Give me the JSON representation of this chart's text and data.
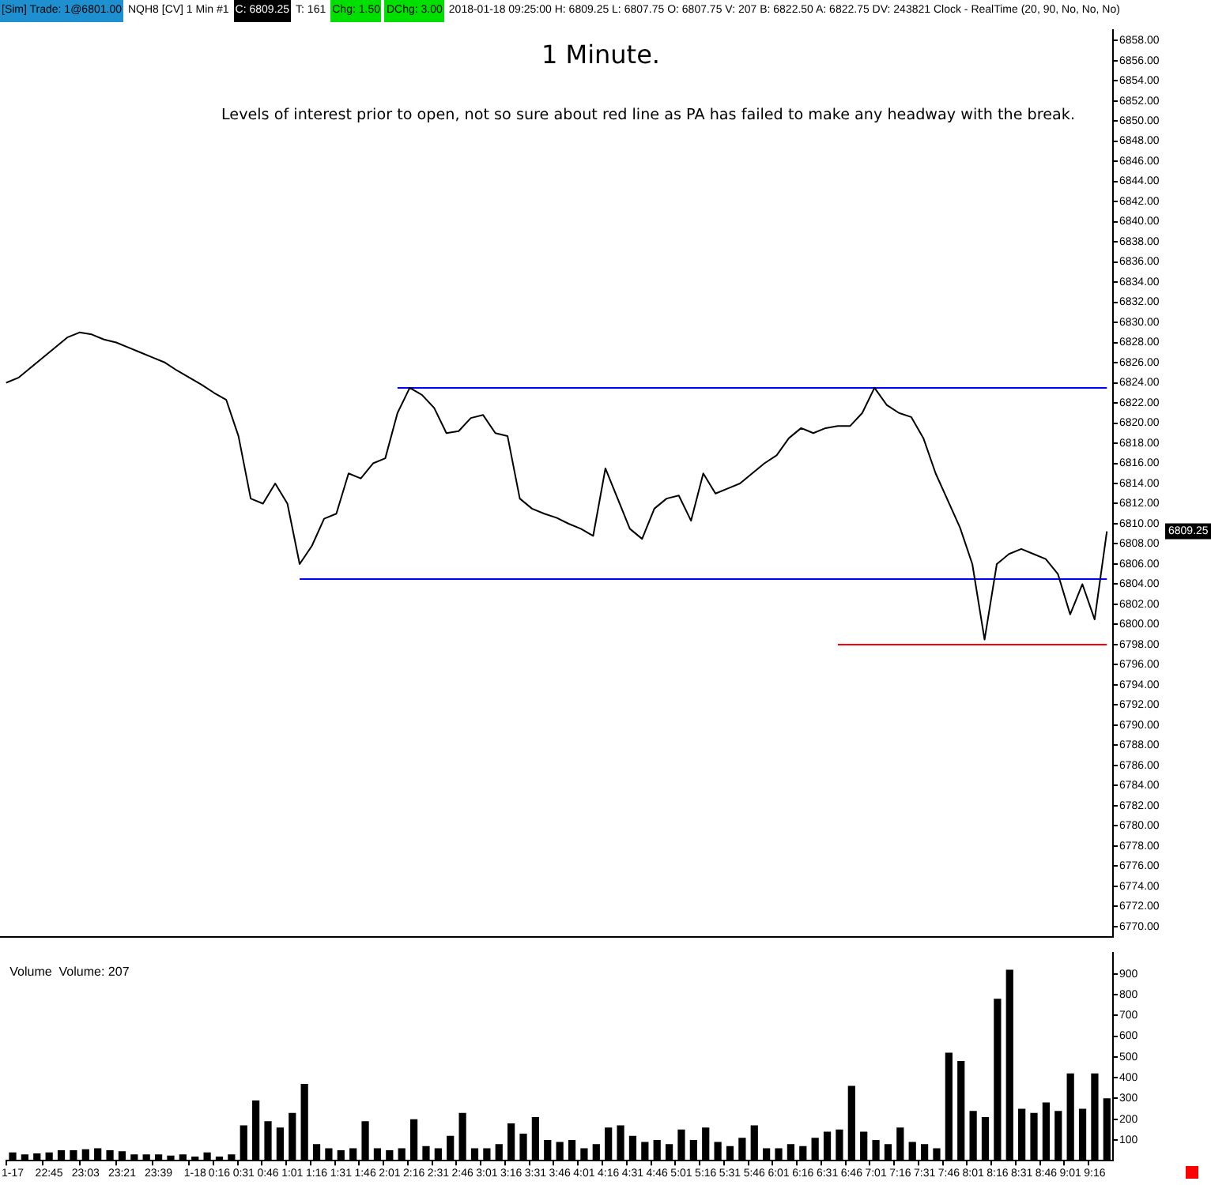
{
  "chart_data": [
    {
      "type": "line",
      "title": "1 Minute.",
      "subtitle": "Levels of interest prior to open, not so sure about red line as PA has failed to make any headway with the break.",
      "annotations": [
        "[Sim]  Trade: 1@6801.00",
        "NQH8 [CV]  1 Min  #1",
        "C: 6809.25",
        "T: 161",
        "Chg: 1.50",
        "DChg: 3.00",
        "2018-01-18 09:25:00 H: 6809.25 L: 6807.75 O: 6807.75 V: 207 B: 6822.50 A: 6822.75 DV: 243821 Clock - RealTime   (20, 90, No, No, No)",
        "6809.25"
      ],
      "series": [
        {
          "color": "#000000",
          "values": [
            6824,
            6824.5,
            6825.5,
            6826.5,
            6827.5,
            6828.5,
            6829,
            6828.8,
            6828.3,
            6828,
            6827.5,
            6827,
            6826.5,
            6826,
            6825.2,
            6824.5,
            6823.8,
            6823,
            6822.3,
            6818.7,
            6812.5,
            6812,
            6814,
            6812,
            6806,
            6807.8,
            6810.5,
            6811,
            6815,
            6814.5,
            6816,
            6816.5,
            6821,
            6823.5,
            6822.8,
            6821.5,
            6819,
            6819.2,
            6820.5,
            6820.8,
            6819,
            6818.7,
            6812.5,
            6811.5,
            6811,
            6810.6,
            6810,
            6809.5,
            6808.8,
            6815.5,
            6812.5,
            6809.5,
            6808.5,
            6811.5,
            6812.5,
            6812.8,
            6810.3,
            6815,
            6813,
            6813.5,
            6814,
            6815,
            6816,
            6816.8,
            6818.5,
            6819.5,
            6819,
            6819.5,
            6819.7,
            6819.7,
            6821,
            6823.5,
            6821.8,
            6821,
            6820.6,
            6818.5,
            6815,
            6812.3,
            6809.6,
            6806,
            6798.5,
            6806,
            6807,
            6807.5,
            6807,
            6806.5,
            6805,
            6801,
            6804,
            6800.5,
            6809.25
          ]
        },
        {
          "color": "#0000ff",
          "values": [
            null,
            null,
            null,
            null,
            null,
            null,
            null,
            null,
            null,
            null,
            null,
            null,
            null,
            null,
            null,
            null,
            null,
            null,
            null,
            null,
            null,
            null,
            null,
            null,
            null,
            null,
            null,
            null,
            null,
            null,
            null,
            null,
            6823.5,
            6823.5,
            6823.5,
            6823.5,
            6823.5,
            6823.5,
            6823.5,
            6823.5,
            6823.5,
            6823.5,
            6823.5,
            6823.5,
            6823.5,
            6823.5,
            6823.5,
            6823.5,
            6823.5,
            6823.5,
            6823.5,
            6823.5,
            6823.5,
            6823.5,
            6823.5,
            6823.5,
            6823.5,
            6823.5,
            6823.5,
            6823.5,
            6823.5,
            6823.5,
            6823.5,
            6823.5,
            6823.5,
            6823.5,
            6823.5,
            6823.5,
            6823.5,
            6823.5,
            6823.5,
            6823.5,
            6823.5,
            6823.5,
            6823.5,
            6823.5,
            6823.5,
            6823.5,
            6823.5,
            6823.5,
            6823.5,
            6823.5,
            6823.5,
            6823.5,
            6823.5,
            6823.5,
            6823.5,
            6823.5,
            6823.5,
            6823.5,
            6823.5
          ]
        },
        {
          "color": "#0000ff",
          "values": [
            null,
            null,
            null,
            null,
            null,
            null,
            null,
            null,
            null,
            null,
            null,
            null,
            null,
            null,
            null,
            null,
            null,
            null,
            null,
            null,
            null,
            null,
            null,
            null,
            6804.5,
            6804.5,
            6804.5,
            6804.5,
            6804.5,
            6804.5,
            6804.5,
            6804.5,
            6804.5,
            6804.5,
            6804.5,
            6804.5,
            6804.5,
            6804.5,
            6804.5,
            6804.5,
            6804.5,
            6804.5,
            6804.5,
            6804.5,
            6804.5,
            6804.5,
            6804.5,
            6804.5,
            6804.5,
            6804.5,
            6804.5,
            6804.5,
            6804.5,
            6804.5,
            6804.5,
            6804.5,
            6804.5,
            6804.5,
            6804.5,
            6804.5,
            6804.5,
            6804.5,
            6804.5,
            6804.5,
            6804.5,
            6804.5,
            6804.5,
            6804.5,
            6804.5,
            6804.5,
            6804.5,
            6804.5,
            6804.5,
            6804.5,
            6804.5,
            6804.5,
            6804.5,
            6804.5,
            6804.5,
            6804.5,
            6804.5,
            6804.5,
            6804.5,
            6804.5,
            6804.5,
            6804.5,
            6804.5,
            6804.5,
            6804.5,
            6804.5,
            6804.5
          ]
        },
        {
          "color": "#ff0000",
          "values": [
            null,
            null,
            null,
            null,
            null,
            null,
            null,
            null,
            null,
            null,
            null,
            null,
            null,
            null,
            null,
            null,
            null,
            null,
            null,
            null,
            null,
            null,
            null,
            null,
            null,
            null,
            null,
            null,
            null,
            null,
            null,
            null,
            null,
            null,
            null,
            null,
            null,
            null,
            null,
            null,
            null,
            null,
            null,
            null,
            null,
            null,
            null,
            null,
            null,
            null,
            null,
            null,
            null,
            null,
            null,
            null,
            null,
            null,
            null,
            null,
            null,
            null,
            null,
            null,
            null,
            null,
            null,
            null,
            6798,
            6798,
            6798,
            6798,
            6798,
            6798,
            6798,
            6798,
            6798,
            6798,
            6798,
            6798,
            6798,
            6798,
            6798,
            6798,
            6798,
            6798,
            6798,
            6798,
            6798,
            6798,
            6798
          ]
        }
      ],
      "marker": "none",
      "legend": false,
      "tick_labels": "y",
      "ylim": [
        6769,
        6859
      ],
      "yticks": [
        {
          "value": 6770,
          "label": "6770.00"
        },
        {
          "value": 6772,
          "label": "6772.00"
        },
        {
          "value": 6774,
          "label": "6774.00"
        },
        {
          "value": 6776,
          "label": "6776.00"
        },
        {
          "value": 6778,
          "label": "6778.00"
        },
        {
          "value": 6780,
          "label": "6780.00"
        },
        {
          "value": 6782,
          "label": "6782.00"
        },
        {
          "value": 6784,
          "label": "6784.00"
        },
        {
          "value": 6786,
          "label": "6786.00"
        },
        {
          "value": 6788,
          "label": "6788.00"
        },
        {
          "value": 6790,
          "label": "6790.00"
        },
        {
          "value": 6792,
          "label": "6792.00"
        },
        {
          "value": 6794,
          "label": "6794.00"
        },
        {
          "value": 6796,
          "label": "6796.00"
        },
        {
          "value": 6798,
          "label": "6798.00"
        },
        {
          "value": 6800,
          "label": "6800.00"
        },
        {
          "value": 6802,
          "label": "6802.00"
        },
        {
          "value": 6804,
          "label": "6804.00"
        },
        {
          "value": 6806,
          "label": "6806.00"
        },
        {
          "value": 6808,
          "label": "6808.00"
        },
        {
          "value": 6810,
          "label": "6810.00"
        },
        {
          "value": 6812,
          "label": "6812.00"
        },
        {
          "value": 6814,
          "label": "6814.00"
        },
        {
          "value": 6816,
          "label": "6816.00"
        },
        {
          "value": 6818,
          "label": "6818.00"
        },
        {
          "value": 6820,
          "label": "6820.00"
        },
        {
          "value": 6822,
          "label": "6822.00"
        },
        {
          "value": 6824,
          "label": "6824.00"
        },
        {
          "value": 6826,
          "label": "6826.00"
        },
        {
          "value": 6828,
          "label": "6828.00"
        },
        {
          "value": 6830,
          "label": "6830.00"
        },
        {
          "value": 6832,
          "label": "6832.00"
        },
        {
          "value": 6834,
          "label": "6834.00"
        },
        {
          "value": 6836,
          "label": "6836.00"
        },
        {
          "value": 6838,
          "label": "6838.00"
        },
        {
          "value": 6840,
          "label": "6840.00"
        },
        {
          "value": 6842,
          "label": "6842.00"
        },
        {
          "value": 6844,
          "label": "6844.00"
        },
        {
          "value": 6846,
          "label": "6846.00"
        },
        {
          "value": 6848,
          "label": "6848.00"
        },
        {
          "value": 6850,
          "label": "6850.00"
        },
        {
          "value": 6852,
          "label": "6852.00"
        },
        {
          "value": 6854,
          "label": "6854.00"
        },
        {
          "value": 6856,
          "label": "6856.00"
        },
        {
          "value": 6858,
          "label": "6858.00"
        }
      ]
    },
    {
      "type": "bar",
      "title": "Volume  Volume: 207",
      "color": "#000000",
      "legend": false,
      "categories": [
        "1-17",
        null,
        null,
        "22:45",
        null,
        null,
        "23:03",
        null,
        null,
        "23:21",
        null,
        null,
        "23:39",
        null,
        null,
        "1-18",
        null,
        "0:16",
        null,
        "0:31",
        null,
        "0:46",
        null,
        "1:01",
        null,
        "1:16",
        null,
        "1:31",
        null,
        "1:46",
        null,
        "2:01",
        null,
        "2:16",
        null,
        "2:31",
        null,
        "2:46",
        null,
        "3:01",
        null,
        "3:16",
        null,
        "3:31",
        null,
        "3:46",
        null,
        "4:01",
        null,
        "4:16",
        null,
        "4:31",
        null,
        "4:46",
        null,
        "5:01",
        null,
        "5:16",
        null,
        "5:31",
        null,
        "5:46",
        null,
        "6:01",
        null,
        "6:16",
        null,
        "6:31",
        null,
        "6:46",
        null,
        "7:01",
        null,
        "7:16",
        null,
        "7:31",
        null,
        "7:46",
        null,
        "8:01",
        null,
        "8:16",
        null,
        "8:31",
        null,
        "8:46",
        null,
        "9:01",
        null,
        "9:16",
        null
      ],
      "values": [
        40,
        30,
        35,
        40,
        50,
        50,
        55,
        60,
        50,
        45,
        30,
        30,
        30,
        25,
        30,
        20,
        40,
        20,
        30,
        170,
        290,
        190,
        160,
        230,
        370,
        80,
        60,
        50,
        60,
        190,
        60,
        50,
        60,
        200,
        70,
        60,
        120,
        230,
        60,
        60,
        80,
        180,
        130,
        210,
        100,
        90,
        100,
        60,
        80,
        160,
        170,
        120,
        90,
        100,
        80,
        150,
        100,
        160,
        90,
        70,
        110,
        170,
        60,
        60,
        80,
        70,
        110,
        140,
        150,
        360,
        140,
        100,
        80,
        160,
        90,
        80,
        60,
        520,
        480,
        240,
        210,
        780,
        920,
        250,
        230,
        280,
        240,
        420,
        250,
        420,
        300
      ],
      "ylim": [
        0,
        1000
      ],
      "yticks": [
        100,
        200,
        300,
        400,
        500,
        600,
        700,
        800,
        900
      ]
    }
  ]
}
